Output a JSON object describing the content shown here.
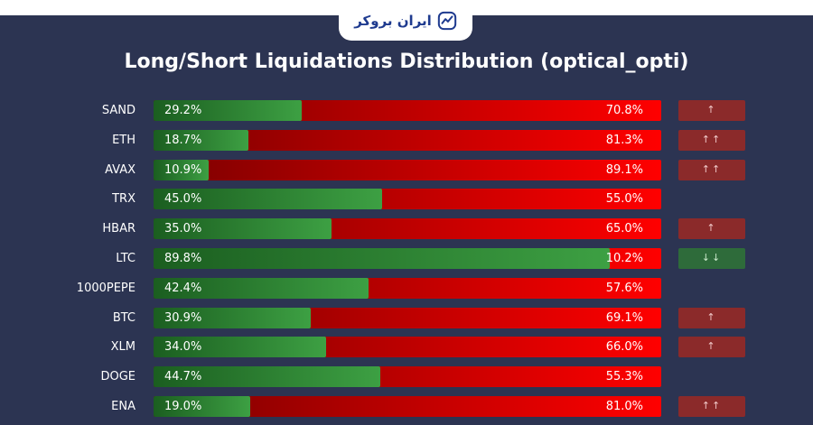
{
  "brand": {
    "name": "ایران بروکر"
  },
  "chart_data": {
    "type": "bar",
    "title": "Long/Short Liquidations Distribution (optical_opti)",
    "categories": [
      "SAND",
      "ETH",
      "AVAX",
      "TRX",
      "HBAR",
      "LTC",
      "1000PEPE",
      "BTC",
      "XLM",
      "DOGE",
      "ENA"
    ],
    "series": [
      {
        "values": [
          29.2,
          18.7,
          10.9,
          45.0,
          35.0,
          89.8,
          42.4,
          30.9,
          34.0,
          44.7,
          19.0
        ]
      },
      {
        "values": [
          70.8,
          81.3,
          89.1,
          55.0,
          65.0,
          10.2,
          57.6,
          69.1,
          66.0,
          55.3,
          81.0
        ]
      }
    ],
    "long_labels": [
      "29.2%",
      "18.7%",
      "10.9%",
      "45.0%",
      "35.0%",
      "89.8%",
      "42.4%",
      "30.9%",
      "34.0%",
      "44.7%",
      "19.0%"
    ],
    "short_labels": [
      "70.8%",
      "81.3%",
      "89.1%",
      "55.0%",
      "65.0%",
      "10.2%",
      "57.6%",
      "69.1%",
      "66.0%",
      "55.3%",
      "81.0%"
    ],
    "signals": [
      "↑",
      "↑↑",
      "↑↑",
      "",
      "↑",
      "↓↓",
      "",
      "↑",
      "↑",
      "",
      "↑↑"
    ],
    "signal_types": [
      "up",
      "up",
      "up",
      "none",
      "up",
      "down",
      "none",
      "up",
      "up",
      "none",
      "up"
    ],
    "ylim": [
      0,
      100
    ],
    "colors": {
      "long_start": "#1b5e20",
      "long_end": "#3da043",
      "short_start": "#7a0000",
      "short_end": "#ff0000",
      "signal_up": "#8b2a2a",
      "signal_down": "#2e6b3a"
    }
  }
}
